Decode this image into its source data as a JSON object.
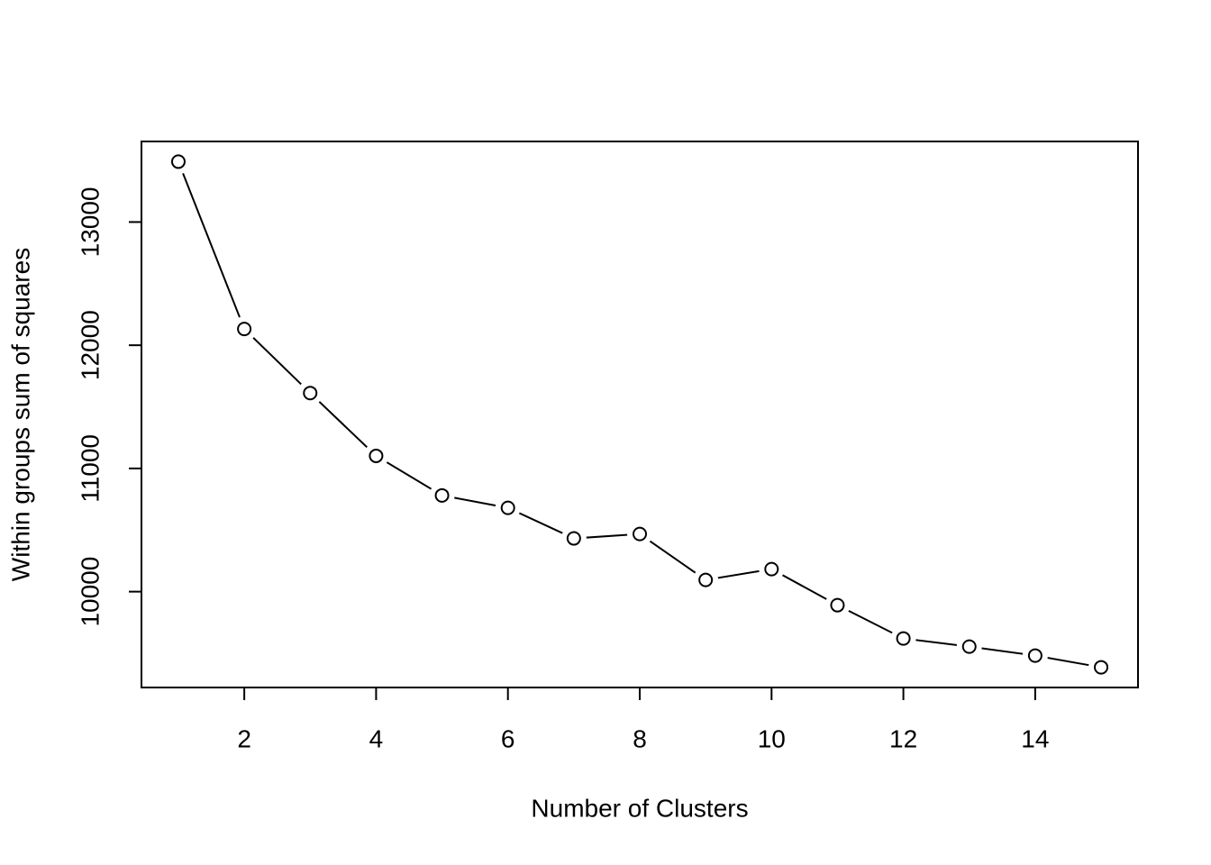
{
  "chart_data": {
    "type": "line",
    "x_label": "Number of Clusters",
    "y_label": "Within groups sum of squares",
    "x": [
      1,
      2,
      3,
      4,
      5,
      6,
      7,
      8,
      9,
      10,
      11,
      12,
      13,
      14,
      15
    ],
    "values": [
      13490,
      12132,
      11612,
      11102,
      10781,
      10680,
      10432,
      10468,
      10095,
      10183,
      9890,
      9620,
      9554,
      9481,
      9386
    ],
    "color": "#000000",
    "xlim": [
      0.44,
      15.56
    ],
    "xticks": [
      2,
      4,
      6,
      8,
      10,
      12,
      14
    ],
    "ylim": [
      9222,
      13654
    ],
    "yticks": [
      10000,
      11000,
      12000,
      13000
    ]
  }
}
